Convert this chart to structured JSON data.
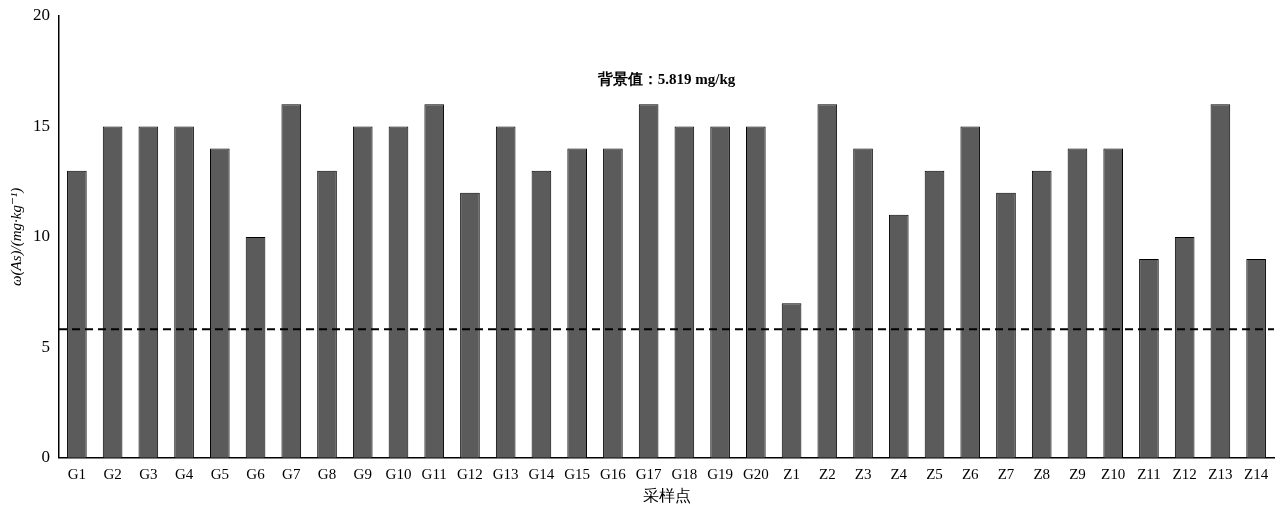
{
  "chart_data": {
    "type": "bar",
    "xlabel": "采样点",
    "ylabel": "ω(As)/(mg·kg⁻¹)",
    "categories": [
      "G1",
      "G2",
      "G3",
      "G4",
      "G5",
      "G6",
      "G7",
      "G8",
      "G9",
      "G10",
      "G11",
      "G12",
      "G13",
      "G14",
      "G15",
      "G16",
      "G17",
      "G18",
      "G19",
      "G20",
      "Z1",
      "Z2",
      "Z3",
      "Z4",
      "Z5",
      "Z6",
      "Z7",
      "Z8",
      "Z9",
      "Z10",
      "Z11",
      "Z12",
      "Z13",
      "Z14"
    ],
    "values": [
      13,
      15,
      15,
      15,
      14,
      10,
      16,
      13,
      15,
      15,
      16,
      12,
      15,
      13,
      14,
      14,
      16,
      15,
      15,
      15,
      7,
      16,
      14,
      11,
      13,
      15,
      12,
      13,
      14,
      14,
      9,
      10,
      16,
      9
    ],
    "color": "#5b5b5b",
    "ylim": [
      0,
      20
    ],
    "yticks": [
      0,
      5,
      10,
      15,
      20
    ],
    "ref_lines": [
      {
        "axis": "y",
        "value": 5.819,
        "label": "背景值：5.819 mg/kg",
        "color": "#000000",
        "line_style": "dashed"
      }
    ],
    "grid": false,
    "legend": false
  }
}
